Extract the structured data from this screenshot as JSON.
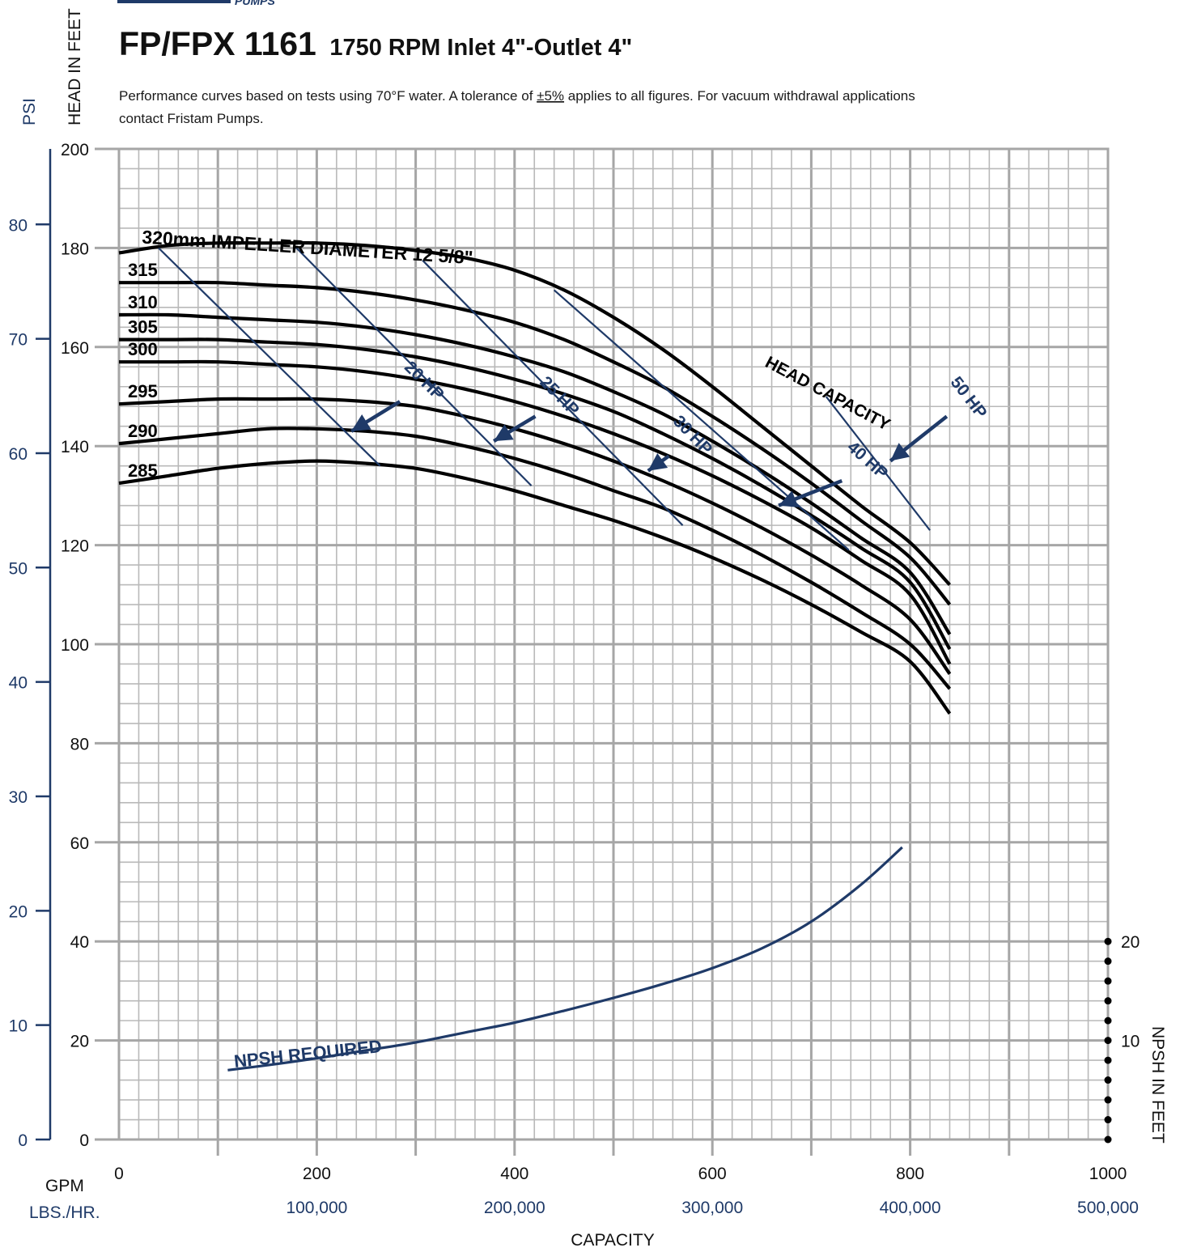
{
  "header": {
    "brand_fragment": "PUMPS",
    "model": "FP/FPX 1161",
    "subtitle": "1750 RPM Inlet 4\"-Outlet 4\"",
    "note_line1_pre": "Performance curves based on tests using 70°F water.  A tolerance of ",
    "note_tolerance": "±5%",
    "note_line1_post": " applies to all figures. For vacuum withdrawal applications",
    "note_line2": "contact Fristam Pumps."
  },
  "colors": {
    "brand_blue": "#1f3a68",
    "curve_black": "#000000",
    "grid_gray": "#b9b9b9",
    "grid_major": "#a6a6a6"
  },
  "chart_data": {
    "type": "line",
    "axes": {
      "head_label": "HEAD IN FEET",
      "psi_label": "PSI",
      "npsh_label": "NPSH IN FEET",
      "gpm_label": "GPM",
      "lbs_label": "LBS./HR.",
      "capacity_label": "CAPACITY",
      "x_range_gpm": [
        0,
        1000
      ],
      "head_range_ft": [
        0,
        200
      ],
      "psi_range": [
        0,
        86.6
      ],
      "npsh_range_ft": [
        0,
        20
      ],
      "gpm_ticks": [
        "0",
        "200",
        "400",
        "600",
        "800",
        "1000"
      ],
      "lbs_ticks": [
        "100,000",
        "200,000",
        "300,000",
        "400,000",
        "500,000"
      ],
      "lbs_tick_gpm": [
        200,
        400,
        600,
        800,
        1000
      ],
      "head_ticks": [
        "0",
        "20",
        "40",
        "60",
        "80",
        "100",
        "120",
        "140",
        "160",
        "180",
        "200"
      ],
      "psi_ticks": [
        "0",
        "10",
        "20",
        "30",
        "40",
        "50",
        "60",
        "70",
        "80"
      ],
      "npsh_tick_labels": [
        "10",
        "20"
      ],
      "grid": true
    },
    "impeller_curves": [
      {
        "label": "320mm IMPELLER DIAMETER 12 5/8\"",
        "points": [
          [
            0,
            179
          ],
          [
            50,
            180.5
          ],
          [
            100,
            181
          ],
          [
            150,
            181
          ],
          [
            200,
            181
          ],
          [
            250,
            180.5
          ],
          [
            300,
            179.5
          ],
          [
            350,
            178
          ],
          [
            400,
            175.5
          ],
          [
            450,
            171.5
          ],
          [
            500,
            166
          ],
          [
            550,
            159.5
          ],
          [
            600,
            152
          ],
          [
            650,
            144
          ],
          [
            700,
            136
          ],
          [
            750,
            128
          ],
          [
            800,
            120.5
          ],
          [
            840,
            112
          ]
        ]
      },
      {
        "label": "315",
        "points": [
          [
            0,
            173
          ],
          [
            50,
            173
          ],
          [
            100,
            173
          ],
          [
            150,
            172.5
          ],
          [
            200,
            172
          ],
          [
            250,
            171
          ],
          [
            300,
            169.5
          ],
          [
            350,
            167.5
          ],
          [
            400,
            165
          ],
          [
            450,
            161.5
          ],
          [
            500,
            157
          ],
          [
            550,
            152
          ],
          [
            600,
            146
          ],
          [
            650,
            139.5
          ],
          [
            700,
            132.5
          ],
          [
            750,
            125
          ],
          [
            800,
            117.5
          ],
          [
            840,
            108
          ]
        ]
      },
      {
        "label": "310",
        "points": [
          [
            0,
            166.5
          ],
          [
            50,
            166.5
          ],
          [
            100,
            166
          ],
          [
            150,
            165.5
          ],
          [
            200,
            165
          ],
          [
            250,
            164
          ],
          [
            300,
            162.5
          ],
          [
            350,
            160.5
          ],
          [
            400,
            158
          ],
          [
            450,
            155
          ],
          [
            500,
            151
          ],
          [
            550,
            146.5
          ],
          [
            600,
            141
          ],
          [
            650,
            135
          ],
          [
            700,
            128.5
          ],
          [
            750,
            121.5
          ],
          [
            800,
            114.5
          ],
          [
            840,
            102
          ]
        ]
      },
      {
        "label": "305",
        "points": [
          [
            0,
            161.5
          ],
          [
            50,
            161.5
          ],
          [
            100,
            161.5
          ],
          [
            150,
            161
          ],
          [
            200,
            160.5
          ],
          [
            250,
            159.5
          ],
          [
            300,
            158
          ],
          [
            350,
            156
          ],
          [
            400,
            153.5
          ],
          [
            450,
            150.5
          ],
          [
            500,
            147
          ],
          [
            550,
            142.5
          ],
          [
            600,
            137.5
          ],
          [
            650,
            132
          ],
          [
            700,
            126
          ],
          [
            750,
            119.5
          ],
          [
            800,
            112.5
          ],
          [
            840,
            99
          ]
        ]
      },
      {
        "label": "300",
        "points": [
          [
            0,
            157
          ],
          [
            50,
            157
          ],
          [
            100,
            157
          ],
          [
            150,
            156.5
          ],
          [
            200,
            156
          ],
          [
            250,
            155
          ],
          [
            300,
            153.5
          ],
          [
            350,
            151.5
          ],
          [
            400,
            149
          ],
          [
            450,
            146
          ],
          [
            500,
            142.5
          ],
          [
            550,
            138.5
          ],
          [
            600,
            134
          ],
          [
            650,
            129
          ],
          [
            700,
            123.5
          ],
          [
            750,
            117
          ],
          [
            800,
            110
          ],
          [
            840,
            96
          ]
        ]
      },
      {
        "label": "295",
        "points": [
          [
            0,
            148.5
          ],
          [
            50,
            149
          ],
          [
            100,
            149.5
          ],
          [
            150,
            149.5
          ],
          [
            200,
            149.5
          ],
          [
            250,
            149
          ],
          [
            300,
            148
          ],
          [
            350,
            146
          ],
          [
            400,
            143.5
          ],
          [
            450,
            140.5
          ],
          [
            500,
            137
          ],
          [
            550,
            133
          ],
          [
            600,
            128.5
          ],
          [
            650,
            123.5
          ],
          [
            700,
            118
          ],
          [
            750,
            112
          ],
          [
            800,
            105
          ],
          [
            840,
            94
          ]
        ]
      },
      {
        "label": "290",
        "points": [
          [
            0,
            140.5
          ],
          [
            50,
            141.5
          ],
          [
            100,
            142.5
          ],
          [
            150,
            143.5
          ],
          [
            200,
            143.5
          ],
          [
            250,
            143
          ],
          [
            300,
            142
          ],
          [
            350,
            140
          ],
          [
            400,
            137.5
          ],
          [
            450,
            134.5
          ],
          [
            500,
            131
          ],
          [
            550,
            127.5
          ],
          [
            600,
            123
          ],
          [
            650,
            118
          ],
          [
            700,
            112.5
          ],
          [
            750,
            106.5
          ],
          [
            800,
            100
          ],
          [
            840,
            91
          ]
        ]
      },
      {
        "label": "285",
        "points": [
          [
            0,
            132.5
          ],
          [
            50,
            134
          ],
          [
            100,
            135.5
          ],
          [
            150,
            136.5
          ],
          [
            200,
            137
          ],
          [
            250,
            136.5
          ],
          [
            300,
            135.5
          ],
          [
            350,
            133.5
          ],
          [
            400,
            131
          ],
          [
            450,
            128
          ],
          [
            500,
            125
          ],
          [
            550,
            121.5
          ],
          [
            600,
            117.5
          ],
          [
            650,
            113
          ],
          [
            700,
            108
          ],
          [
            750,
            102.5
          ],
          [
            800,
            96.5
          ],
          [
            840,
            86
          ]
        ]
      }
    ],
    "horsepower_lines": [
      {
        "label": "20 HP",
        "points": [
          [
            40,
            180
          ],
          [
            264,
            136
          ]
        ],
        "arrow_from": [
          284,
          149
        ],
        "arrow_to": [
          235,
          143
        ]
      },
      {
        "label": "25 HP",
        "points": [
          [
            177,
            180.5
          ],
          [
            417,
            132
          ]
        ],
        "arrow_from": [
          421,
          146
        ],
        "arrow_to": [
          379,
          141
        ]
      },
      {
        "label": "30 HP",
        "points": [
          [
            307,
            177.5
          ],
          [
            570,
            124
          ]
        ],
        "arrow_from": [
          556,
          138
        ],
        "arrow_to": [
          535,
          135
        ]
      },
      {
        "label": "40 HP",
        "points": [
          [
            440,
            171.5
          ],
          [
            738,
            119
          ]
        ],
        "arrow_from": [
          731,
          133
        ],
        "arrow_to": [
          667,
          128
        ]
      },
      {
        "label": "50 HP",
        "points": [
          [
            715,
            150
          ],
          [
            820,
            123
          ]
        ],
        "arrow_from": [
          837,
          146
        ],
        "arrow_to": [
          780,
          137
        ]
      }
    ],
    "annotations": {
      "head_capacity": "HEAD CAPACITY"
    },
    "npsh_required": {
      "label": "NPSH REQUIRED",
      "points": [
        [
          110,
          7
        ],
        [
          150,
          7.5
        ],
        [
          200,
          8.2
        ],
        [
          250,
          9
        ],
        [
          300,
          9.8
        ],
        [
          350,
          10.8
        ],
        [
          400,
          11.8
        ],
        [
          450,
          13
        ],
        [
          500,
          14.3
        ],
        [
          550,
          15.7
        ],
        [
          600,
          17.3
        ],
        [
          650,
          19.3
        ],
        [
          700,
          22
        ],
        [
          750,
          25.7
        ],
        [
          792,
          29.5
        ]
      ]
    },
    "psi_per_foot": 0.433
  }
}
